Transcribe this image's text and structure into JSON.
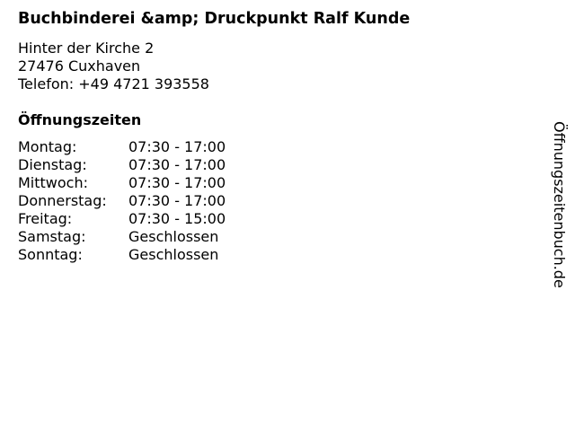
{
  "business": {
    "name": "Buchbinderei &amp; Druckpunkt Ralf Kunde",
    "street": "Hinter der Kirche 2",
    "city": "27476 Cuxhaven",
    "phone": "Telefon: +49 4721 393558"
  },
  "hours_heading": "Öffnungszeiten",
  "hours": [
    {
      "day": "Montag:",
      "time": "07:30 - 17:00"
    },
    {
      "day": "Dienstag:",
      "time": "07:30 - 17:00"
    },
    {
      "day": "Mittwoch:",
      "time": "07:30 - 17:00"
    },
    {
      "day": "Donnerstag:",
      "time": "07:30 - 17:00"
    },
    {
      "day": "Freitag:",
      "time": "07:30 - 15:00"
    },
    {
      "day": "Samstag:",
      "time": "Geschlossen"
    },
    {
      "day": "Sonntag:",
      "time": "Geschlossen"
    }
  ],
  "watermark": "Öffnungszeitenbuch.de"
}
